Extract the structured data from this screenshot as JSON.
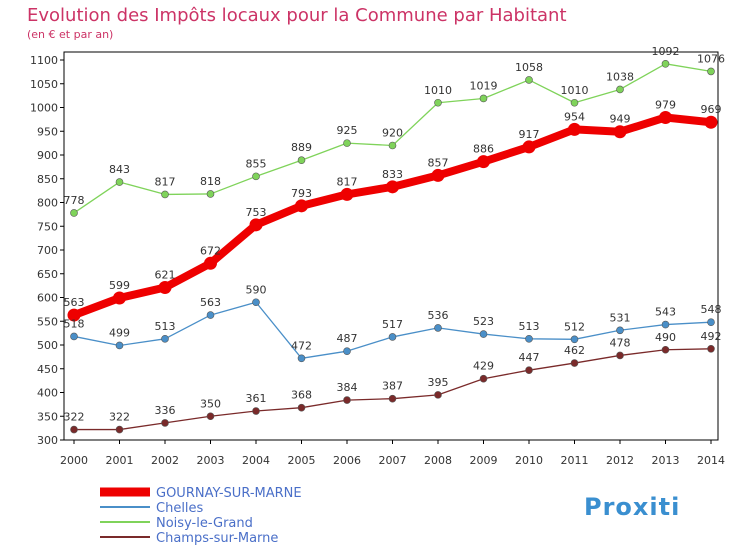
{
  "chart_data": {
    "type": "line",
    "title": "Evolution des Impôts locaux pour la Commune par Habitant",
    "subtitle": "(en € et par an)",
    "x": [
      2000,
      2001,
      2002,
      2003,
      2004,
      2005,
      2006,
      2007,
      2008,
      2009,
      2010,
      2011,
      2012,
      2013,
      2014
    ],
    "ylim": [
      300,
      1100
    ],
    "yticks": [
      300,
      350,
      400,
      450,
      500,
      550,
      600,
      650,
      700,
      750,
      800,
      850,
      900,
      950,
      1000,
      1050,
      1100
    ],
    "grid": false,
    "legend_placement": "bottom-left",
    "series": [
      {
        "name": "Noisy-le-Grand",
        "color": "#7fd35a",
        "values": [
          778,
          843,
          817,
          818,
          855,
          889,
          925,
          920,
          1010,
          1019,
          1058,
          1010,
          1038,
          1092,
          1076
        ]
      },
      {
        "name": "Chelles",
        "color": "#4a8fc8",
        "values": [
          518,
          499,
          513,
          563,
          590,
          472,
          487,
          517,
          536,
          523,
          513,
          512,
          531,
          543,
          548
        ]
      },
      {
        "name": "Champs-sur-Marne",
        "color": "#7a2a2a",
        "values": [
          322,
          322,
          336,
          350,
          361,
          368,
          384,
          387,
          395,
          429,
          447,
          462,
          478,
          490,
          492
        ]
      },
      {
        "name": "GOURNAY-SUR-MARNE",
        "color": "#ee0000",
        "values": [
          563,
          599,
          621,
          672,
          753,
          793,
          817,
          833,
          857,
          886,
          917,
          954,
          949,
          979,
          969
        ]
      }
    ],
    "legend_order": [
      "GOURNAY-SUR-MARNE",
      "Chelles",
      "Noisy-le-Grand",
      "Champs-sur-Marne"
    ]
  },
  "colors": {
    "title": "#cc3366",
    "legend_text": "#4a6fc8",
    "axis": "#000000"
  },
  "logo": {
    "text": "Proxiti"
  }
}
